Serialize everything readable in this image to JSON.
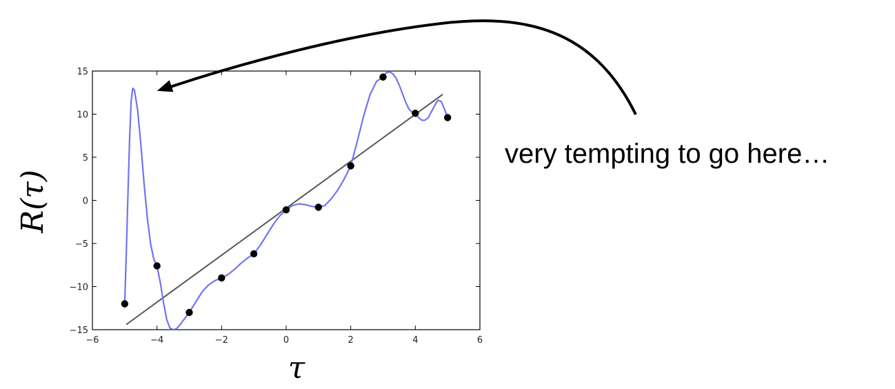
{
  "chart_data": {
    "type": "scatter",
    "title": "",
    "xlabel": "τ",
    "ylabel": "R(τ)",
    "xlim": [
      -6,
      6
    ],
    "ylim": [
      -15,
      15
    ],
    "xticks": [
      -6,
      -4,
      -2,
      0,
      2,
      4,
      6
    ],
    "yticks": [
      -15,
      -10,
      -5,
      0,
      5,
      10,
      15
    ],
    "xtick_labels": [
      "−6",
      "−4",
      "−2",
      "0",
      "2",
      "4",
      "6"
    ],
    "ytick_labels": [
      "−15",
      "−10",
      "−5",
      "0",
      "5",
      "10",
      "15"
    ],
    "grid": false,
    "legend": "none",
    "series": [
      {
        "kind": "points",
        "color": "#000000",
        "x": [
          -5,
          -4,
          -3,
          -2,
          -1,
          0,
          1,
          2,
          3,
          4,
          5
        ],
        "y": [
          -12.0,
          -7.6,
          -13.0,
          -9.0,
          -6.2,
          -1.1,
          -0.8,
          4.0,
          14.3,
          10.1,
          9.6
        ]
      },
      {
        "kind": "linear-fit",
        "color": "#555555",
        "x": [
          -4.95,
          4.85
        ],
        "y": [
          -14.4,
          12.3
        ]
      },
      {
        "kind": "polynomial-fit",
        "color": "#6f73f3",
        "x": [
          -5.0,
          -4.95,
          -4.9,
          -4.85,
          -4.8,
          -4.75,
          -4.7,
          -4.6,
          -4.5,
          -4.4,
          -4.3,
          -4.2,
          -4.1,
          -4.0,
          -3.9,
          -3.8,
          -3.7,
          -3.6,
          -3.5,
          -3.4,
          -3.3,
          -3.2,
          -3.1,
          -3.0,
          -2.8,
          -2.6,
          -2.4,
          -2.2,
          -2.0,
          -1.8,
          -1.6,
          -1.4,
          -1.2,
          -1.0,
          -0.8,
          -0.6,
          -0.4,
          -0.2,
          0.0,
          0.2,
          0.4,
          0.6,
          0.8,
          1.0,
          1.2,
          1.4,
          1.6,
          1.8,
          2.0,
          2.2,
          2.4,
          2.6,
          2.8,
          3.0,
          3.1,
          3.2,
          3.3,
          3.4,
          3.5,
          3.6,
          3.7,
          3.8,
          3.9,
          4.0,
          4.1,
          4.2,
          4.3,
          4.4,
          4.5,
          4.6,
          4.7,
          4.8,
          4.9,
          5.0
        ],
        "y": [
          -12.0,
          -6.0,
          0.5,
          7.0,
          11.5,
          13.0,
          12.8,
          10.5,
          6.5,
          2.0,
          -2.0,
          -5.0,
          -6.8,
          -7.6,
          -9.5,
          -11.8,
          -13.8,
          -14.8,
          -15.0,
          -14.9,
          -14.5,
          -14.0,
          -13.5,
          -13.0,
          -11.8,
          -10.6,
          -9.8,
          -9.3,
          -9.0,
          -8.6,
          -8.0,
          -7.3,
          -6.7,
          -6.2,
          -5.2,
          -4.0,
          -2.8,
          -1.8,
          -1.1,
          -0.6,
          -0.4,
          -0.5,
          -0.7,
          -0.8,
          -0.6,
          0.2,
          1.2,
          2.5,
          4.0,
          6.8,
          9.8,
          12.3,
          13.8,
          14.3,
          14.8,
          14.9,
          14.7,
          14.2,
          13.4,
          12.4,
          11.4,
          10.6,
          10.2,
          10.1,
          9.6,
          9.3,
          9.3,
          9.6,
          10.3,
          11.0,
          11.6,
          11.5,
          10.6,
          9.6
        ]
      }
    ],
    "annotation": {
      "text": "very tempting to go here…",
      "arrow_tip": {
        "x": -4.0,
        "y": 12.7
      }
    }
  }
}
